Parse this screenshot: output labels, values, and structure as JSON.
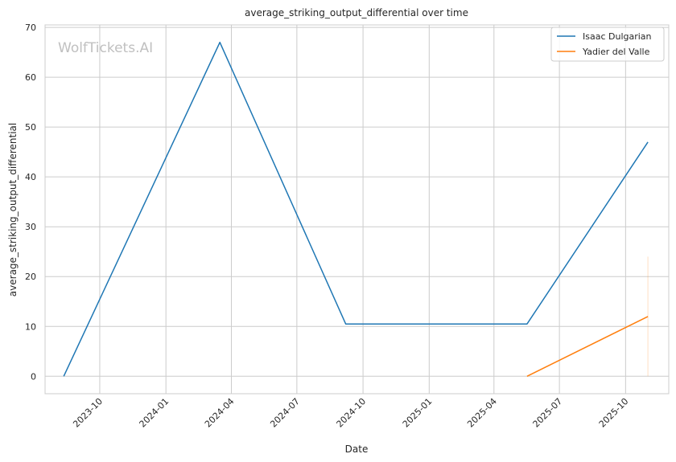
{
  "chart_data": {
    "type": "line",
    "title": "average_striking_output_differential over time",
    "xlabel": "Date",
    "ylabel": "average_striking_output_differential",
    "watermark": "WolfTickets.AI",
    "grid": true,
    "legend_placement": "top-right",
    "x_ticks": [
      "2023-10",
      "2024-01",
      "2024-04",
      "2024-07",
      "2024-10",
      "2025-01",
      "2025-04",
      "2025-07",
      "2025-10"
    ],
    "y_ticks": [
      "0",
      "10",
      "20",
      "30",
      "40",
      "50",
      "60",
      "70"
    ],
    "xlim": [
      "2023-07-17",
      "2025-11-30"
    ],
    "ylim": [
      -3.5,
      70.5
    ],
    "series": [
      {
        "name": "Isaac Dulgarian",
        "color": "#1f77b4",
        "x": [
          "2023-08-12",
          "2024-03-16",
          "2024-09-07",
          "2025-05-17",
          "2025-11-01"
        ],
        "y": [
          0,
          67,
          10.5,
          10.5,
          47
        ]
      },
      {
        "name": "Yadier del Valle",
        "color": "#ff7f0e",
        "x": [
          "2025-05-17",
          "2025-11-01"
        ],
        "y": [
          0,
          12
        ],
        "band": {
          "x": "2025-11-01",
          "y_low": 0,
          "y_high": 24
        }
      }
    ]
  }
}
